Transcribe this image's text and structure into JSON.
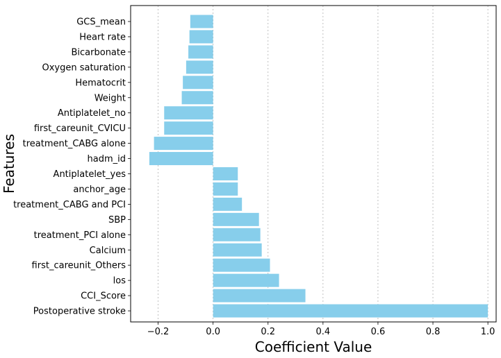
{
  "chart_data": {
    "type": "bar",
    "orientation": "horizontal",
    "xlabel": "Coefficient Value",
    "ylabel": "Features",
    "xlim": [
      -0.3,
      1.03
    ],
    "xticks": [
      -0.2,
      0.0,
      0.2,
      0.4,
      0.6,
      0.8,
      1.0
    ],
    "xtick_labels": [
      "−0.2",
      "0.0",
      "0.2",
      "0.4",
      "0.6",
      "0.8",
      "1.0"
    ],
    "grid": "x-dotted",
    "bar_color": "#87CEEB",
    "categories": [
      "GCS_mean",
      "Heart rate",
      "Bicarbonate",
      "Oxygen saturation",
      "Hematocrit",
      "Weight",
      "Antiplatelet_no",
      "first_careunit_CVICU",
      "treatment_CABG alone",
      "hadm_id",
      "Antiplatelet_yes",
      "anchor_age",
      "treatment_CABG and PCI",
      "SBP",
      "treatment_PCI alone",
      "Calcium",
      "first_careunit_Others",
      "los",
      "CCI_Score",
      "Postoperative stroke"
    ],
    "values": [
      -0.083,
      -0.086,
      -0.09,
      -0.098,
      -0.11,
      -0.114,
      -0.178,
      -0.178,
      -0.215,
      -0.232,
      0.09,
      0.09,
      0.105,
      0.167,
      0.172,
      0.177,
      0.207,
      0.24,
      0.336,
      1.0
    ]
  }
}
